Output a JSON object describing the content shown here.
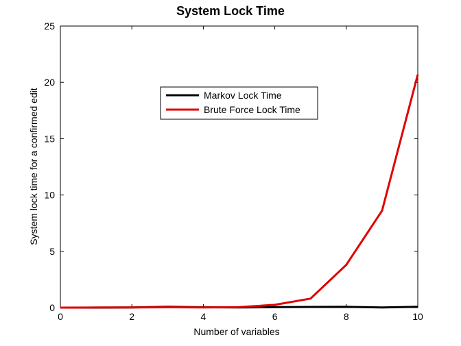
{
  "chart_data": {
    "type": "line",
    "title": "System Lock Time",
    "xlabel": "Number of variables",
    "ylabel": "System lock time for a confirmed edit",
    "xlim": [
      0,
      10
    ],
    "ylim": [
      0,
      25
    ],
    "xticks": [
      0,
      2,
      4,
      6,
      8,
      10
    ],
    "yticks": [
      0,
      5,
      10,
      15,
      20,
      25
    ],
    "grid": false,
    "legend_position": "top-center",
    "series": [
      {
        "name": "Markov Lock Time",
        "color": "#000000",
        "x": [
          0,
          1,
          2,
          3,
          4,
          5,
          6,
          7,
          8,
          9,
          10
        ],
        "y": [
          0,
          0,
          0.02,
          0.08,
          0.03,
          0.01,
          0.04,
          0.06,
          0.07,
          0.02,
          0.07
        ]
      },
      {
        "name": "Brute Force Lock Time",
        "color": "#e00000",
        "x": [
          0,
          1,
          2,
          3,
          4,
          5,
          6,
          7,
          8,
          9,
          10
        ],
        "y": [
          0,
          0.01,
          0.02,
          0.03,
          0.02,
          0.05,
          0.25,
          0.8,
          3.8,
          8.6,
          20.7
        ]
      }
    ]
  }
}
